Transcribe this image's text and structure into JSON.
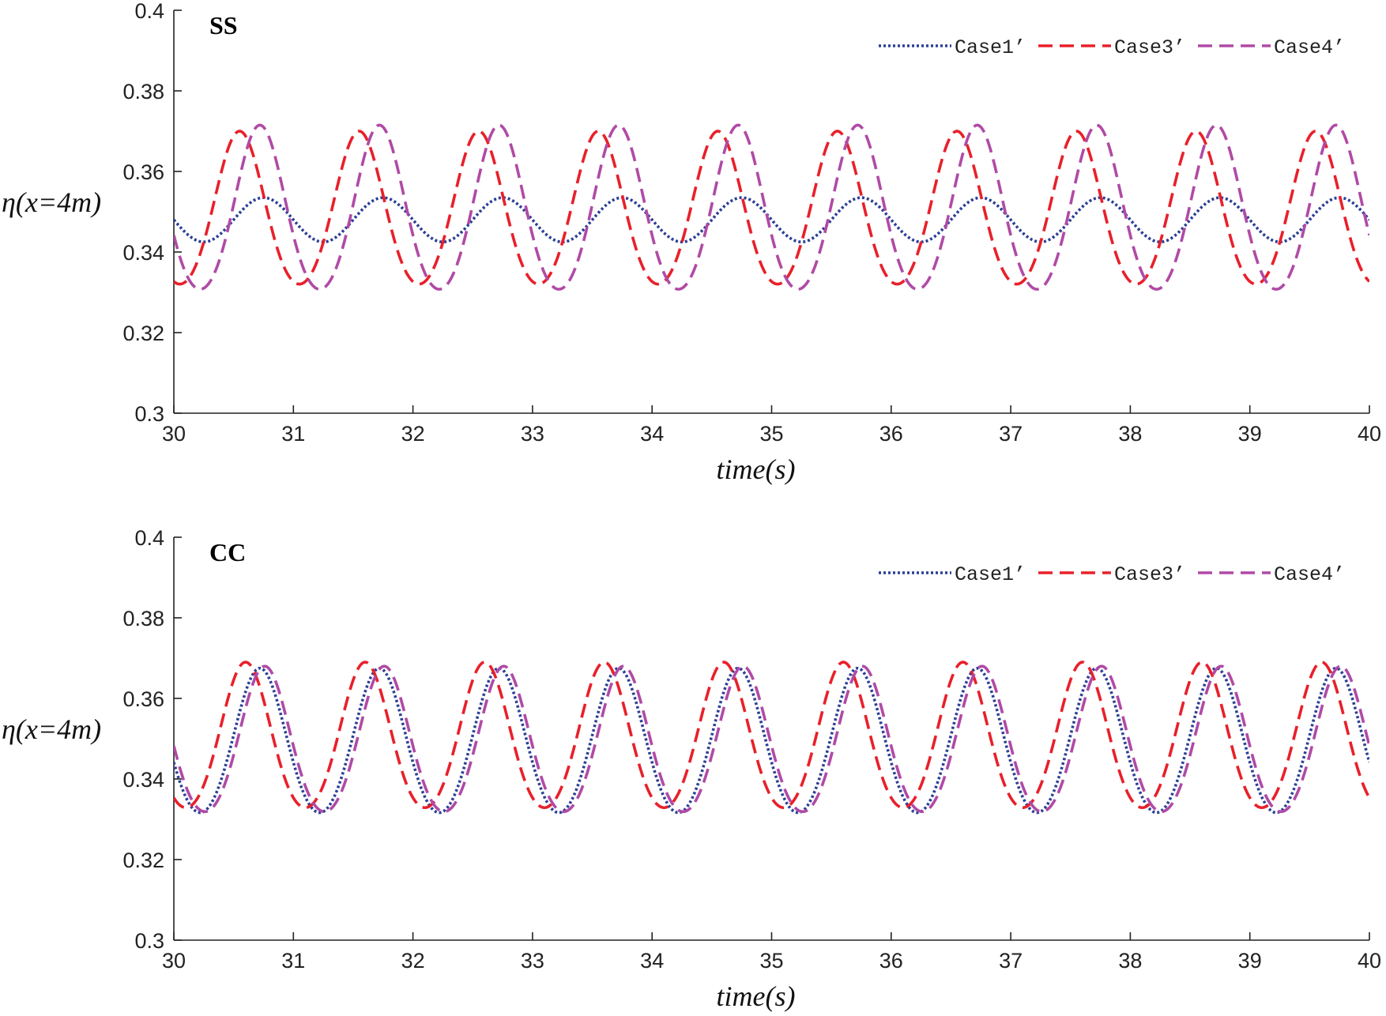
{
  "chart_data": [
    {
      "type": "line",
      "panel_label": "SS",
      "title": "",
      "xlabel": "time(s)",
      "ylabel": "η(x=4m)",
      "xlim": [
        30,
        40
      ],
      "ylim": [
        0.3,
        0.4
      ],
      "xticks": [
        "30",
        "31",
        "32",
        "33",
        "34",
        "35",
        "36",
        "37",
        "38",
        "39",
        "40"
      ],
      "yticks": [
        "0.3",
        "0.32",
        "0.34",
        "0.36",
        "0.38",
        "0.4"
      ],
      "grid": false,
      "legend_position": "top-right",
      "series": [
        {
          "name": "Case1’",
          "color": "#2b3f96",
          "style": "dotted",
          "mean": 0.348,
          "amplitude": 0.0055,
          "period": 1.0,
          "peak_time": 30.75,
          "sharp": 0
        },
        {
          "name": "Case3’",
          "color": "#e8202a",
          "style": "dashed",
          "mean": 0.3495,
          "amplitude": 0.0205,
          "period": 1.0,
          "peak_time": 30.55,
          "sharp": 0.08
        },
        {
          "name": "Case4’",
          "color": "#b04aa6",
          "style": "dashed",
          "mean": 0.3495,
          "amplitude": 0.022,
          "period": 1.0,
          "peak_time": 30.72,
          "sharp": 0.08
        }
      ]
    },
    {
      "type": "line",
      "panel_label": "CC",
      "title": "",
      "xlabel": "time(s)",
      "ylabel": "η(x=4m)",
      "xlim": [
        30,
        40
      ],
      "ylim": [
        0.3,
        0.4
      ],
      "xticks": [
        "30",
        "31",
        "32",
        "33",
        "34",
        "35",
        "36",
        "37",
        "38",
        "39",
        "40"
      ],
      "yticks": [
        "0.3",
        "0.32",
        "0.34",
        "0.36",
        "0.38",
        "0.4"
      ],
      "grid": false,
      "legend_position": "top-right",
      "series": [
        {
          "name": "Case1’",
          "color": "#2b3f96",
          "style": "dotted",
          "mean": 0.3485,
          "amplitude": 0.019,
          "period": 1.0,
          "peak_time": 30.72,
          "sharp": 0.06
        },
        {
          "name": "Case3’",
          "color": "#e8202a",
          "style": "dashed",
          "mean": 0.3495,
          "amplitude": 0.0195,
          "period": 1.0,
          "peak_time": 30.6,
          "sharp": 0.08
        },
        {
          "name": "Case4’",
          "color": "#b04aa6",
          "style": "dashed",
          "mean": 0.3485,
          "amplitude": 0.0195,
          "period": 1.0,
          "peak_time": 30.76,
          "sharp": 0.08
        }
      ]
    }
  ]
}
